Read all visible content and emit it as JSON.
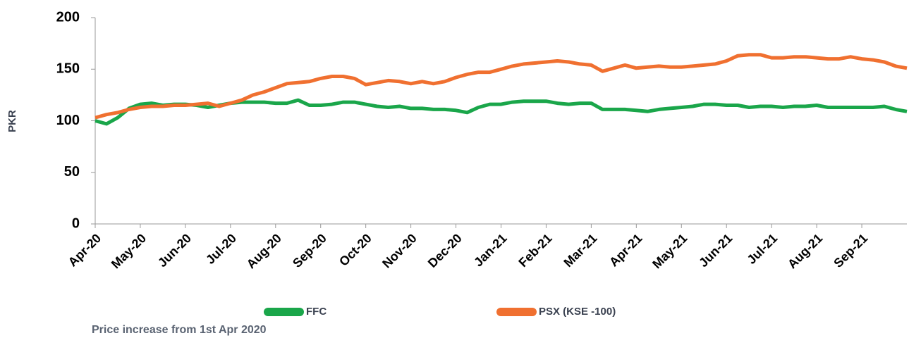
{
  "chart_data": {
    "type": "line",
    "y_label": "PKR",
    "caption": "Price increase from 1st Apr 2020",
    "categories": [
      "Apr-20",
      null,
      null,
      null,
      "May-20",
      null,
      null,
      null,
      "Jun-20",
      null,
      null,
      null,
      "Jul-20",
      null,
      null,
      null,
      "Aug-20",
      null,
      null,
      null,
      "Sep-20",
      null,
      null,
      null,
      "Oct-20",
      null,
      null,
      null,
      "Nov-20",
      null,
      null,
      null,
      "Dec-20",
      null,
      null,
      null,
      "Jan-21",
      null,
      null,
      null,
      "Feb-21",
      null,
      null,
      null,
      "Mar-21",
      null,
      null,
      null,
      "Apr-21",
      null,
      null,
      null,
      "May-21",
      null,
      null,
      null,
      "Jun-21",
      null,
      null,
      null,
      "Jul-21",
      null,
      null,
      null,
      "Aug-21",
      null,
      null,
      null,
      "Sep-21",
      null,
      null,
      null,
      null
    ],
    "series": [
      {
        "name": "FFC",
        "color": "#1aa64a",
        "values": [
          100,
          97,
          103,
          112,
          116,
          117,
          115,
          116,
          116,
          115,
          113,
          115,
          117,
          118,
          118,
          118,
          117,
          117,
          120,
          115,
          115,
          116,
          118,
          118,
          116,
          114,
          113,
          114,
          112,
          112,
          111,
          111,
          110,
          108,
          113,
          116,
          116,
          118,
          119,
          119,
          119,
          117,
          116,
          117,
          117,
          111,
          111,
          111,
          110,
          109,
          111,
          112,
          113,
          114,
          116,
          116,
          115,
          115,
          113,
          114,
          114,
          113,
          114,
          114,
          115,
          113,
          113,
          113,
          113,
          113,
          114,
          111,
          109
        ]
      },
      {
        "name": "PSX (KSE -100)",
        "color": "#f07030",
        "values": [
          103,
          106,
          108,
          111,
          113,
          114,
          114,
          115,
          115,
          116,
          117,
          114,
          117,
          120,
          125,
          128,
          132,
          136,
          137,
          138,
          141,
          143,
          143,
          141,
          135,
          137,
          139,
          138,
          136,
          138,
          136,
          138,
          142,
          145,
          147,
          147,
          150,
          153,
          155,
          156,
          157,
          158,
          157,
          155,
          154,
          148,
          151,
          154,
          151,
          152,
          153,
          152,
          152,
          153,
          154,
          155,
          158,
          163,
          164,
          164,
          161,
          161,
          162,
          162,
          161,
          160,
          160,
          162,
          160,
          159,
          157,
          153,
          151
        ]
      }
    ],
    "ylim": [
      0,
      200
    ],
    "yticks": [
      0,
      50,
      100,
      150,
      200
    ]
  }
}
